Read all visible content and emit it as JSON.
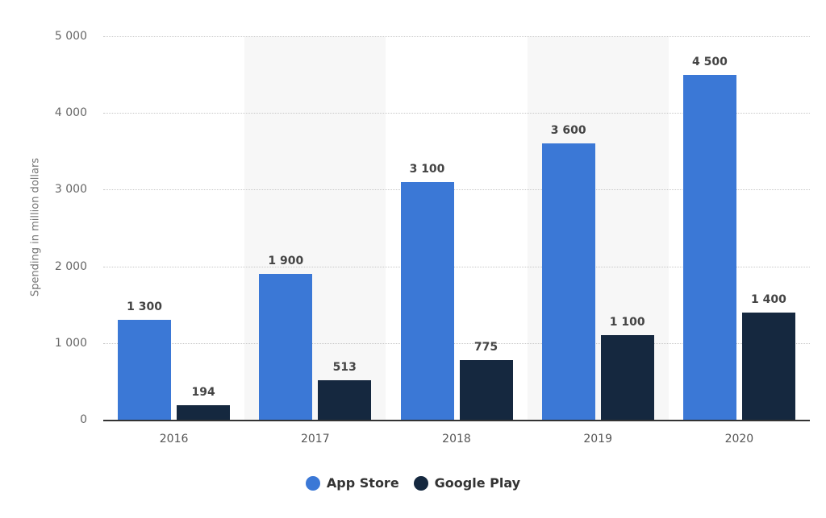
{
  "chart_data": {
    "type": "bar",
    "title": "",
    "xlabel": "",
    "ylabel": "Spending in million dollars",
    "ylim": [
      0,
      5000
    ],
    "yticks": [
      0,
      1000,
      2000,
      3000,
      4000,
      5000
    ],
    "ytick_labels": [
      "0",
      "1 000",
      "2 000",
      "3 000",
      "4 000",
      "5 000"
    ],
    "grid": true,
    "legend_position": "bottom",
    "categories": [
      "2016",
      "2017",
      "2018",
      "2019",
      "2020"
    ],
    "series": [
      {
        "name": "App Store",
        "color": "#3b78d6",
        "values": [
          1300,
          1900,
          3100,
          3600,
          4500
        ],
        "labels": [
          "1 300",
          "1 900",
          "3 100",
          "3 600",
          "4 500"
        ]
      },
      {
        "name": "Google Play",
        "color": "#15283f",
        "values": [
          194,
          513,
          775,
          1100,
          1400
        ],
        "labels": [
          "194",
          "513",
          "775",
          "1 100",
          "1 400"
        ]
      }
    ]
  },
  "legend": {
    "items": [
      {
        "label": "App Store",
        "color": "#3b78d6"
      },
      {
        "label": "Google Play",
        "color": "#15283f"
      }
    ]
  },
  "axis": {
    "ylabel": "Spending in million dollars"
  }
}
